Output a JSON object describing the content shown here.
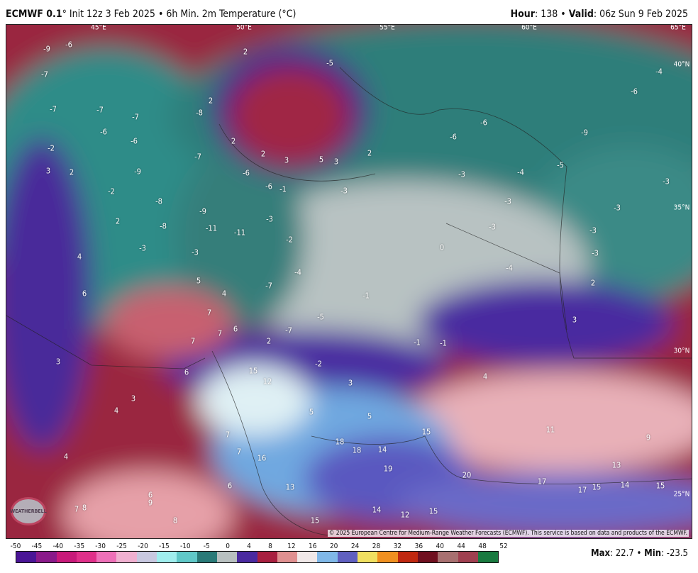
{
  "header": {
    "model": "ECMWF 0.1",
    "title_rest": "° Init 12z 3 Feb 2025 • 6h Min. 2m Temperature (°C)",
    "hour_label": "Hour",
    "hour": "138",
    "valid_label": "Valid",
    "valid": "06z Sun 9 Feb 2025"
  },
  "map": {
    "grid_labels": [
      "45°E",
      "50°E",
      "55°E",
      "60°E",
      "65°E",
      "40°N",
      "35°N",
      "30°N",
      "25°N"
    ],
    "temperature_labels": [
      "-9",
      "-6",
      "-7",
      "-7",
      "-7",
      "-6",
      "-7",
      "-6",
      "-8",
      "2",
      "2",
      "-5",
      "-6",
      "-4",
      "-6",
      "-6",
      "-9",
      "-2",
      "3",
      "2",
      "-9",
      "-7",
      "-6",
      "-6",
      "-1",
      "2",
      "2",
      "3",
      "5",
      "3",
      "2",
      "-3",
      "-3",
      "-4",
      "-5",
      "-3",
      "-3",
      "-3",
      "-2",
      "-8",
      "-9",
      "2",
      "-8",
      "-11",
      "-11",
      "-3",
      "-2",
      "-3",
      "-3",
      "-3",
      "-3",
      "-3",
      "0",
      "-4",
      "4",
      "-4",
      "5",
      "4",
      "-7",
      "-1",
      "2",
      "6",
      "7",
      "-5",
      "3",
      "7",
      "6",
      "7",
      "2",
      "-7",
      "-1",
      "-1",
      "3",
      "6",
      "15",
      "12",
      "-2",
      "3",
      "4",
      "3",
      "4",
      "5",
      "5",
      "7",
      "11",
      "9",
      "15",
      "18",
      "18",
      "14",
      "4",
      "7",
      "16",
      "19",
      "20",
      "13",
      "6",
      "17",
      "17",
      "15",
      "14",
      "15",
      "13",
      "6",
      "9",
      "7",
      "8",
      "14",
      "12",
      "15",
      "8",
      "15"
    ],
    "copyright": "© 2025 European Centre for Medium-Range Weather Forecasts (ECMWF). This service is based on data and products of the ECMWF.",
    "logo_text": "WeatherBell"
  },
  "colorbar": {
    "ticks": [
      "-50",
      "-45",
      "-40",
      "-35",
      "-30",
      "-25",
      "-20",
      "-15",
      "-10",
      "-5",
      "0",
      "4",
      "8",
      "12",
      "16",
      "20",
      "24",
      "28",
      "32",
      "36",
      "40",
      "44",
      "48",
      "52"
    ],
    "colors": [
      "#4a1596",
      "#8a1a8a",
      "#c81a7a",
      "#e0308a",
      "#ee70b8",
      "#f0b0d0",
      "#c8c8e0",
      "#a0eeee",
      "#60c8c8",
      "#2a7a78",
      "#b8c0c0",
      "#4a2aa0",
      "#a82040",
      "#e09090",
      "#f0e8e8",
      "#80b8e8",
      "#6060c0",
      "#f0e060",
      "#f09020",
      "#c02810",
      "#701020",
      "#a87070",
      "#a04050",
      "#1a7a40"
    ],
    "max_label": "Max",
    "max": "22.7",
    "min_label": "Min",
    "min": "-23.5"
  }
}
